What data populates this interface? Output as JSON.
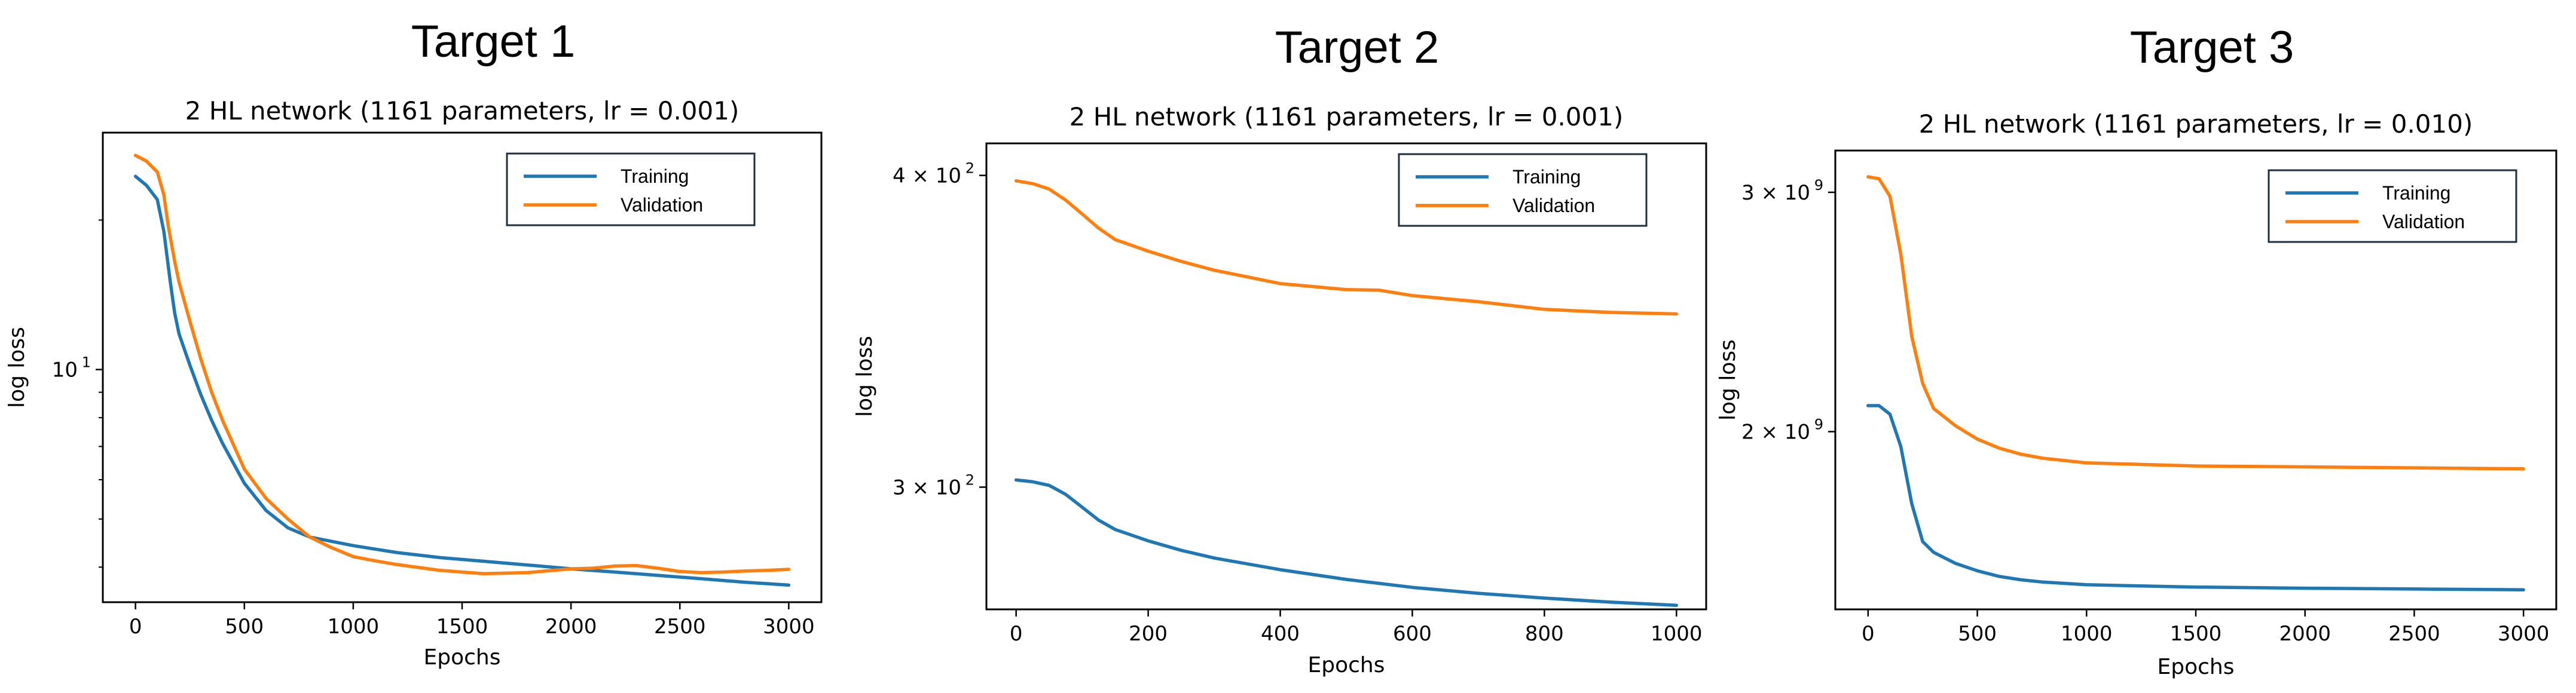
{
  "panels": [
    {
      "heading": "Target 1",
      "chart_data": {
        "type": "line",
        "title": "2 HL network (1161 parameters, lr = 0.001)",
        "xlabel": "Epochs",
        "ylabel": "log loss",
        "yscale": "log",
        "xlim": [
          -150,
          3150
        ],
        "ylim": [
          3.4,
          30
        ],
        "xticks": [
          0,
          500,
          1000,
          1500,
          2000,
          2500,
          3000
        ],
        "xtick_labels": [
          "0",
          "500",
          "1000",
          "1500",
          "2000",
          "2500",
          "3000"
        ],
        "yticks": [
          10
        ],
        "ytick_labels": [
          "10",
          "1"
        ],
        "grid": false,
        "legend_position": "upper-right",
        "series": [
          {
            "name": "Training",
            "color": "#1f77b4",
            "x": [
              0,
              50,
              100,
              130,
              160,
              180,
              200,
              250,
              300,
              350,
              400,
              500,
              600,
              700,
              800,
              1000,
              1200,
              1400,
              1600,
              1800,
              2000,
              2200,
              2400,
              2600,
              2800,
              3000
            ],
            "y": [
              24.5,
              23.5,
              22.0,
              19.0,
              15.0,
              13.0,
              11.8,
              10.2,
              8.9,
              7.9,
              7.1,
              5.9,
              5.2,
              4.8,
              4.6,
              4.42,
              4.28,
              4.18,
              4.11,
              4.04,
              3.97,
              3.91,
              3.85,
              3.79,
              3.73,
              3.68
            ]
          },
          {
            "name": "Validation",
            "color": "#ff7f0e",
            "x": [
              0,
              50,
              100,
              130,
              150,
              180,
              200,
              250,
              300,
              350,
              400,
              500,
              600,
              700,
              800,
              900,
              1000,
              1100,
              1200,
              1400,
              1600,
              1800,
              2000,
              2100,
              2200,
              2300,
              2400,
              2500,
              2600,
              2700,
              2800,
              2900,
              3000
            ],
            "y": [
              27.0,
              26.3,
              25.0,
              22.5,
              19.5,
              16.5,
              15.0,
              12.5,
              10.5,
              9.0,
              7.9,
              6.3,
              5.5,
              5.0,
              4.6,
              4.38,
              4.2,
              4.12,
              4.05,
              3.94,
              3.88,
              3.9,
              3.97,
              3.98,
              4.02,
              4.03,
              3.98,
              3.92,
              3.9,
              3.91,
              3.93,
              3.94,
              3.96
            ]
          }
        ]
      }
    },
    {
      "heading": "Target 2",
      "chart_data": {
        "type": "line",
        "title": "2 HL network (1161 parameters, lr = 0.001)",
        "xlabel": "Epochs",
        "ylabel": "log loss",
        "yscale": "log",
        "xlim": [
          -45,
          1045
        ],
        "ylim": [
          268,
          412
        ],
        "xticks": [
          0,
          200,
          400,
          600,
          800,
          1000
        ],
        "xtick_labels": [
          "0",
          "200",
          "400",
          "600",
          "800",
          "1000"
        ],
        "yticks": [
          300,
          400
        ],
        "ytick_labels": [
          "3 × 10",
          "4 × 10",
          "2"
        ],
        "grid": false,
        "legend_position": "upper-right",
        "series": [
          {
            "name": "Training",
            "color": "#1f77b4",
            "x": [
              0,
              25,
              50,
              75,
              100,
              125,
              150,
              200,
              250,
              300,
              400,
              500,
              600,
              700,
              800,
              900,
              1000
            ],
            "y": [
              302,
              301.5,
              300.5,
              298,
              294.5,
              291,
              288.5,
              285.5,
              283,
              281,
              278,
              275.5,
              273.5,
              272,
              270.8,
              269.8,
              269
            ]
          },
          {
            "name": "Validation",
            "color": "#ff7f0e",
            "x": [
              0,
              25,
              50,
              75,
              100,
              125,
              150,
              200,
              250,
              300,
              400,
              500,
              550,
              600,
              700,
              800,
              900,
              1000
            ],
            "y": [
              398,
              397,
              395,
              391,
              386,
              381,
              377,
              373,
              369.5,
              366.5,
              362,
              360,
              359.8,
              358,
              356,
              353.5,
              352.5,
              352
            ]
          }
        ]
      }
    },
    {
      "heading": "Target 3",
      "chart_data": {
        "type": "line",
        "title": "2 HL network (1161 parameters, lr = 0.010)",
        "xlabel": "Epochs",
        "ylabel": "log loss",
        "yscale": "log",
        "xlim": [
          -150,
          3150
        ],
        "ylim": [
          1480000000,
          3220000000
        ],
        "xticks": [
          0,
          500,
          1000,
          1500,
          2000,
          2500,
          3000
        ],
        "xtick_labels": [
          "0",
          "500",
          "1000",
          "1500",
          "2000",
          "2500",
          "3000"
        ],
        "yticks": [
          2000000000,
          3000000000
        ],
        "ytick_labels": [
          "2 × 10",
          "3 × 10",
          "9"
        ],
        "grid": false,
        "legend_position": "upper-right",
        "series": [
          {
            "name": "Training",
            "color": "#1f77b4",
            "x": [
              0,
              50,
              100,
              150,
              200,
              250,
              300,
              350,
              400,
              500,
              600,
              700,
              800,
              1000,
              1500,
              2000,
              2500,
              3000
            ],
            "y": [
              2090000000,
              2090000000,
              2060000000,
              1950000000,
              1770000000,
              1660000000,
              1630000000,
              1615000000,
              1600000000,
              1580000000,
              1565000000,
              1556000000,
              1550000000,
              1543000000,
              1537000000,
              1534000000,
              1532000000,
              1530000000
            ]
          },
          {
            "name": "Validation",
            "color": "#ff7f0e",
            "x": [
              0,
              50,
              100,
              150,
              200,
              250,
              300,
              350,
              400,
              500,
              600,
              700,
              800,
              1000,
              1500,
              2000,
              2500,
              3000
            ],
            "y": [
              3080000000,
              3070000000,
              2980000000,
              2700000000,
              2350000000,
              2170000000,
              2080000000,
              2050000000,
              2020000000,
              1975000000,
              1945000000,
              1925000000,
              1912000000,
              1897000000,
              1887000000,
              1884000000,
              1881000000,
              1878000000
            ]
          }
        ]
      }
    }
  ]
}
